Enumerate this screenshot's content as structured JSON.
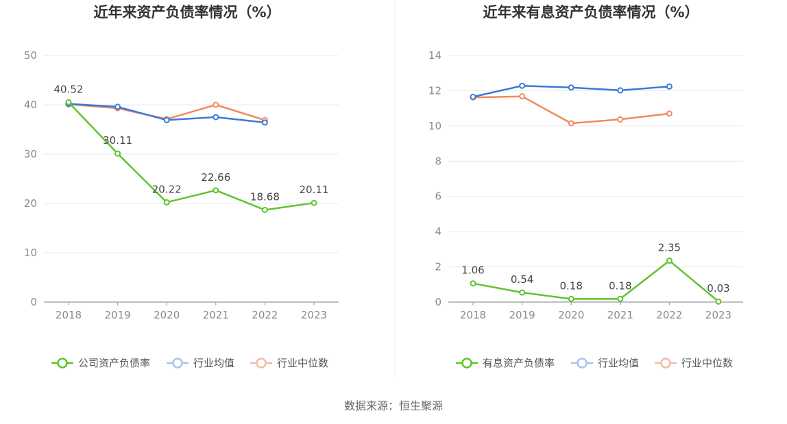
{
  "source": "数据来源：恒生聚源",
  "chart_data": [
    {
      "type": "line",
      "title": "近年来资产负债率情况（%）",
      "categories": [
        "2018",
        "2019",
        "2020",
        "2021",
        "2022",
        "2023"
      ],
      "ylim": [
        0,
        50
      ],
      "yticks": [
        0,
        10,
        20,
        30,
        40,
        50
      ],
      "xlabel": "",
      "ylabel": "",
      "grid": true,
      "legend_position": "bottom",
      "series": [
        {
          "name": "公司资产负债率",
          "color": "#5ec42d",
          "values": [
            40.52,
            30.11,
            20.22,
            22.66,
            18.68,
            20.11
          ],
          "show_labels": true
        },
        {
          "name": "行业均值",
          "color": "#3c78d8",
          "values": [
            40.2,
            39.6,
            36.9,
            37.5,
            36.4,
            null
          ],
          "show_labels": false
        },
        {
          "name": "行业中位数",
          "color": "#f08a5d",
          "values": [
            40.1,
            39.3,
            37.1,
            40.0,
            36.9,
            null
          ],
          "show_labels": false
        }
      ],
      "data_labels": [
        "40.52",
        "30.11",
        "20.22",
        "22.66",
        "18.68",
        "20.11"
      ]
    },
    {
      "type": "line",
      "title": "近年来有息资产负债率情况（%）",
      "categories": [
        "2018",
        "2019",
        "2020",
        "2021",
        "2022",
        "2023"
      ],
      "ylim": [
        0,
        14
      ],
      "yticks": [
        0,
        2,
        4,
        6,
        8,
        10,
        12,
        14
      ],
      "xlabel": "",
      "ylabel": "",
      "grid": true,
      "legend_position": "bottom",
      "series": [
        {
          "name": "有息资产负债率",
          "color": "#5ec42d",
          "values": [
            1.06,
            0.54,
            0.18,
            0.18,
            2.35,
            0.03
          ],
          "show_labels": true
        },
        {
          "name": "行业均值",
          "color": "#3c78d8",
          "values": [
            11.65,
            12.28,
            12.18,
            12.02,
            12.24,
            null
          ],
          "show_labels": false
        },
        {
          "name": "行业中位数",
          "color": "#f08a5d",
          "values": [
            11.62,
            11.68,
            10.15,
            10.37,
            10.7,
            null
          ],
          "show_labels": false
        }
      ],
      "data_labels": [
        "1.06",
        "0.54",
        "0.18",
        "0.18",
        "2.35",
        "0.03"
      ]
    }
  ]
}
